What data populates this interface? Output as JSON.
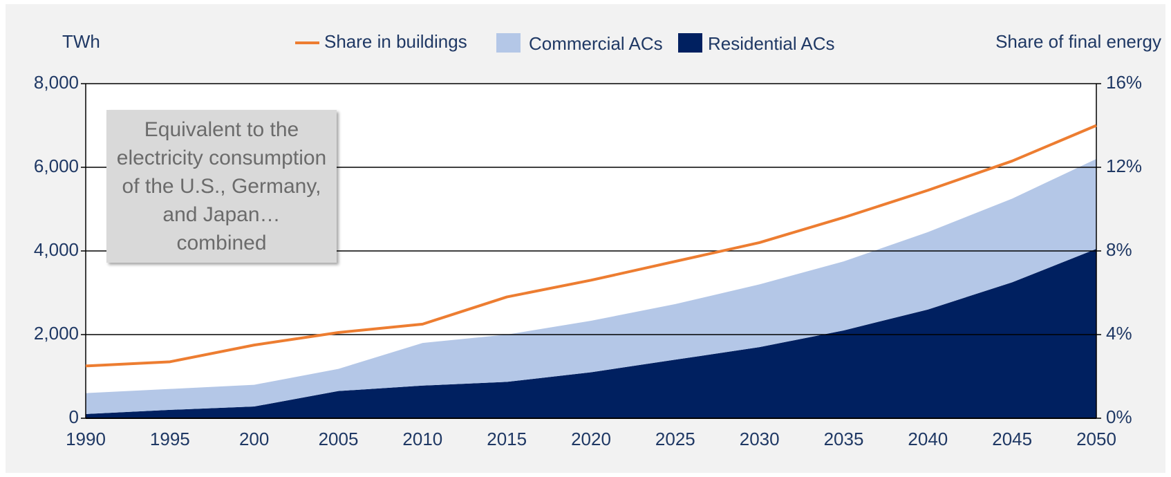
{
  "chart_data": {
    "type": "area",
    "y_label": "TWh",
    "y2_label": "Share of final energy",
    "annotation": "Equivalent to the electricity consumption of the U.S., Germany, and Japan… combined",
    "categories": [
      "1990",
      "1995",
      "200",
      "2005",
      "2010",
      "2015",
      "2020",
      "2025",
      "2030",
      "2035",
      "2040",
      "2045",
      "2050"
    ],
    "series": [
      {
        "name": "Share in buildings",
        "type": "line",
        "axis": "y2",
        "color": "#ed7d31",
        "values": [
          2.5,
          2.7,
          3.5,
          4.1,
          4.5,
          5.8,
          6.6,
          7.5,
          8.4,
          9.6,
          10.9,
          12.3,
          14.0
        ]
      },
      {
        "name": "Commercial ACs",
        "type": "area",
        "color": "#b4c7e7",
        "values": [
          500,
          500,
          520,
          530,
          1020,
          1130,
          1230,
          1330,
          1500,
          1650,
          1850,
          2000,
          2150
        ]
      },
      {
        "name": "Residential ACs",
        "type": "area",
        "color": "#002060",
        "values": [
          100,
          200,
          280,
          650,
          780,
          870,
          1100,
          1400,
          1700,
          2100,
          2600,
          3250,
          4050
        ]
      }
    ],
    "stacked": true,
    "ylim": [
      0,
      8000
    ],
    "yticks": [
      0,
      {
        "value": 2000,
        "label": "2,000"
      },
      {
        "value": 4000,
        "label": "4,000"
      },
      {
        "value": 6000,
        "label": "6,000"
      },
      {
        "value": 8000,
        "label": "8,000"
      }
    ],
    "y2lim": [
      0,
      16
    ],
    "y2ticks": [
      {
        "value": 0,
        "label": "0%"
      },
      {
        "value": 4,
        "label": "4%"
      },
      {
        "value": 8,
        "label": "8%"
      },
      {
        "value": 12,
        "label": "12%"
      },
      {
        "value": 16,
        "label": "16%"
      }
    ],
    "grid": true,
    "legend": "top"
  }
}
